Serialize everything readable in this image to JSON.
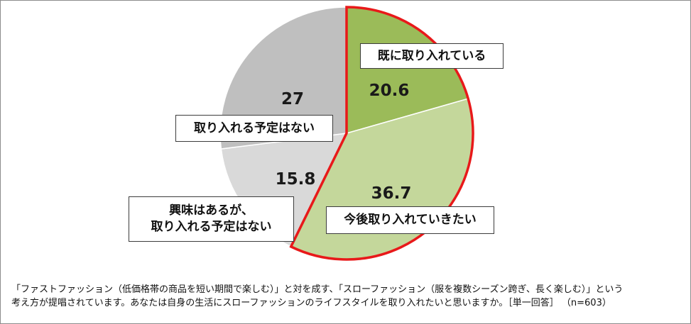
{
  "chart_data": {
    "type": "pie",
    "slices": [
      {
        "label": "既に取り入れている",
        "value": 20.6,
        "color": "#9bbb59",
        "highlight": true
      },
      {
        "label": "今後取り入れていきたい",
        "value": 36.7,
        "color": "#c4d79b",
        "highlight": true
      },
      {
        "label": "興味はあるが、取り入れる予定はない",
        "label_lines": [
          "興味はあるが、",
          "取り入れる予定はない"
        ],
        "value": 15.8,
        "color": "#d9d9d9",
        "highlight": false
      },
      {
        "label": "取り入れる予定はない",
        "value": 27.0,
        "color": "#bfbfbf",
        "highlight": false
      }
    ],
    "highlight_color": "#e8191a",
    "start_angle_deg": 0,
    "direction": "clockwise"
  },
  "footer": {
    "line1": "「ファストファッション（低価格帯の商品を短い期間で楽しむ）」と対を成す、「スローファッション（服を複数シーズン跨ぎ、長く楽しむ）」という",
    "line2": "考え方が提唱されています。あなたは自身の生活にスローファッションのライフスタイルを取り入れたいと思いますか。［単一回答］ （n=603）"
  }
}
